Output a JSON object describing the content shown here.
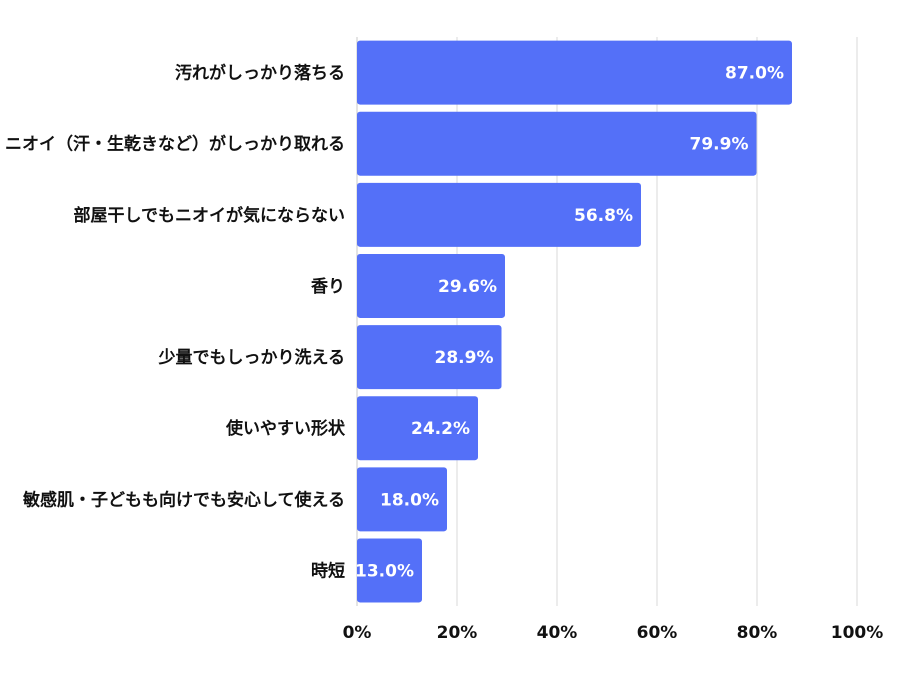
{
  "chart_data": {
    "type": "bar",
    "orientation": "horizontal",
    "categories": [
      "汚れがしっかり落ちる",
      "ニオイ（汗・生乾きなど）がしっかり取れる",
      "部屋干しでもニオイが気にならない",
      "香り",
      "少量でもしっかり洗える",
      "使いやすい形状",
      "敏感肌・子どもも向けでも安心して使える",
      "時短"
    ],
    "values": [
      87.0,
      79.9,
      56.8,
      29.6,
      28.9,
      24.2,
      18.0,
      13.0
    ],
    "data_labels": [
      "87.0%",
      "79.9%",
      "56.8%",
      "29.6%",
      "28.9%",
      "24.2%",
      "18.0%",
      "13.0%"
    ],
    "xlim": [
      0,
      100
    ],
    "x_ticks": [
      0,
      20,
      40,
      60,
      80,
      100
    ],
    "x_tick_labels": [
      "0%",
      "20%",
      "40%",
      "60%",
      "80%",
      "100%"
    ],
    "grid": true,
    "bar_color": "#5470f8",
    "title": "",
    "xlabel": "",
    "ylabel": ""
  }
}
